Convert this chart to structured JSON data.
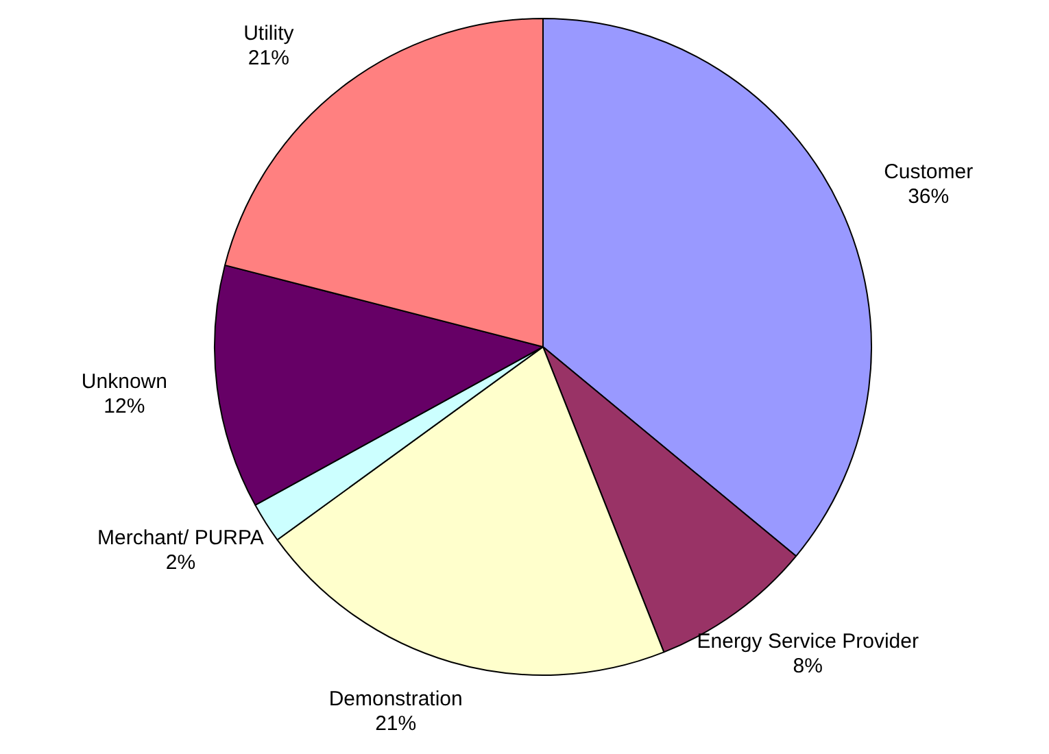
{
  "chart_data": {
    "type": "pie",
    "categories": [
      "Customer",
      "Energy Service Provider",
      "Demonstration",
      "Merchant/ PURPA",
      "Unknown",
      "Utility"
    ],
    "values": [
      36,
      8,
      21,
      2,
      12,
      21
    ],
    "colors": [
      "#9999ff",
      "#993366",
      "#ffffcc",
      "#ccffff",
      "#660066",
      "#ff8080"
    ],
    "value_labels": [
      "36%",
      "8%",
      "21%",
      "2%",
      "12%",
      "21%"
    ],
    "legend": false
  }
}
